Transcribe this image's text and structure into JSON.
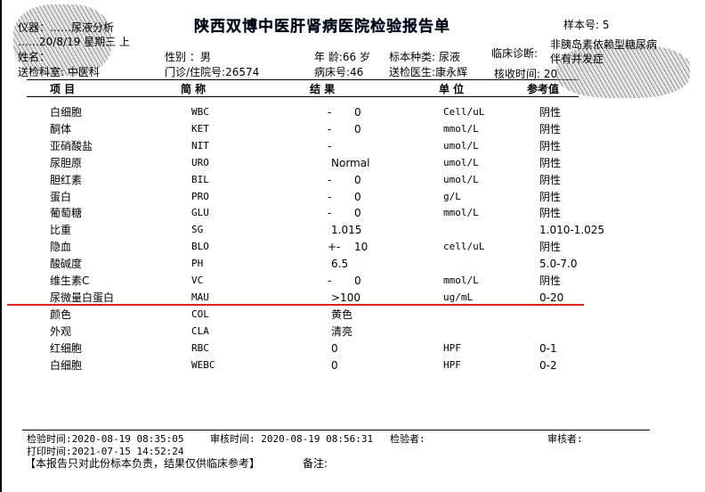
{
  "header": {
    "title": "陕西双博中医肝肾病医院检验报告单",
    "instrument": "仪器：……尿液分析",
    "date": "……20/8/19 星期三 上",
    "sample_no": "样本号: 5",
    "name_label": "姓名：",
    "sex": "性别 ：男",
    "age": "年 龄:66 岁",
    "specimen": "标本种类: 尿液",
    "diagnosis_label": "临床诊断:",
    "diagnosis": "非胰岛素依赖型糖尿病",
    "diagnosis2": "伴有并发症",
    "dept": "送检科室: 中医科",
    "patient_id": "门诊/住院号:26574",
    "bed": "病床号:46",
    "doctor": "送检医生:康永辉",
    "received": "核收时间: 20"
  },
  "table": {
    "headers": [
      "项  目",
      "简  称",
      "结      果",
      "单  位",
      "参考值"
    ],
    "rows": [
      [
        "白细胞",
        "WBC",
        "-",
        "0",
        "Cell/uL",
        "阴性"
      ],
      [
        "酮体",
        "KET",
        "-",
        "0",
        "mmol/L",
        "阴性"
      ],
      [
        "亚硝酸盐",
        "NIT",
        "-",
        "",
        "umol/L",
        "阴性"
      ],
      [
        "尿胆原",
        "URO",
        "",
        "Normal",
        "umol/L",
        "阴性"
      ],
      [
        "胆红素",
        "BIL",
        "-",
        "0",
        "umol/L",
        "阴性"
      ],
      [
        "蛋白",
        "PRO",
        "-",
        "0",
        "g/L",
        "阴性"
      ],
      [
        "葡萄糖",
        "GLU",
        "-",
        "0",
        "mmol/L",
        "阴性"
      ],
      [
        "比重",
        "SG",
        "",
        "1.015",
        "",
        "1.010-1.025"
      ],
      [
        "隐血",
        "BLO",
        "+-",
        "10",
        "cell/uL",
        "阴性"
      ],
      [
        "酸碱度",
        "PH",
        "",
        "6.5",
        "",
        "5.0-7.0"
      ],
      [
        "维生素C",
        "VC",
        "-",
        "0",
        "mmol/L",
        "阴性"
      ],
      [
        "尿微量白蛋白",
        "MAU",
        "",
        ">100",
        "ug/mL",
        "0-20"
      ],
      [
        "颜色",
        "COL",
        "",
        "黄色",
        "",
        ""
      ],
      [
        "外观",
        "CLA",
        "",
        "清亮",
        "",
        ""
      ],
      [
        "红细胞",
        "RBC",
        "",
        "0",
        "HPF",
        "0-1"
      ],
      [
        "白细胞",
        "WEBC",
        "",
        "0",
        "HPF",
        "0-2"
      ]
    ]
  },
  "footer": {
    "test_time": "检验时间:2020-08-19 08:35:05",
    "review_time": "审核时间: 2020-08-19 08:56:31",
    "tester": "检验者:",
    "reviewer": "审核者:",
    "print_time": "打印时间:2021-07-15 14:52:24",
    "disclaimer": "【本报告只对此份标本负责，结果仅供临床参考】",
    "remark": "备注:"
  },
  "colors": {
    "highlight_line": "#e02020"
  }
}
